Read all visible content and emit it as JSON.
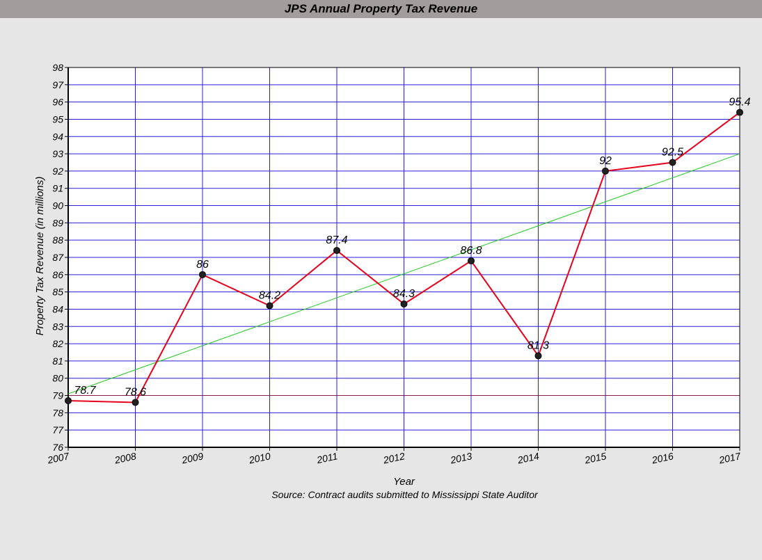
{
  "chart_data": {
    "type": "line",
    "title": "JPS Annual Property Tax Revenue",
    "xlabel": "Year",
    "ylabel": "Property Tax Revenue (in millions)",
    "source": "Source: Contract audits submitted to Mississippi State Auditor",
    "categories": [
      "2007",
      "2008",
      "2009",
      "2010",
      "2011",
      "2012",
      "2013",
      "2014",
      "2015",
      "2016",
      "2017"
    ],
    "series": [
      {
        "name": "",
        "values": [
          78.7,
          78.6,
          86,
          84.2,
          87.4,
          84.3,
          86.8,
          81.3,
          92,
          92.5,
          95.4
        ],
        "data_labels": [
          "78.7",
          "78.6",
          "86",
          "84.2",
          "87.4",
          "84.3",
          "86.8",
          "81.3",
          "92",
          "92.5",
          "95.4"
        ],
        "color": "#e8001c",
        "marker_color": "#222222"
      }
    ],
    "trendline": {
      "type": "linear",
      "start": 79.1,
      "end": 93.0,
      "color": "#22cc22"
    },
    "ylim": [
      76,
      98
    ],
    "yticks": [
      76,
      77,
      78,
      79,
      80,
      81,
      82,
      83,
      84,
      85,
      86,
      87,
      88,
      89,
      90,
      91,
      92,
      93,
      94,
      95,
      96,
      97,
      98
    ],
    "grid": true,
    "grid_color": "#2a1fd6",
    "highlight_gridline": {
      "value": 79,
      "color": "#8b1a4a"
    },
    "legend": "none",
    "background": "#ffffff"
  }
}
